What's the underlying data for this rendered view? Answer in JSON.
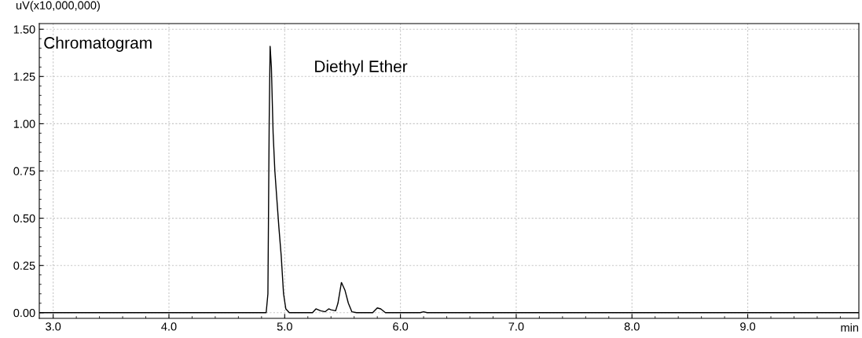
{
  "chart_data": {
    "type": "line",
    "xlabel": "min",
    "ylabel": "uV(x10,000,000)",
    "annotations": [
      "Chromatogram",
      "Diethyl Ether"
    ],
    "x": [
      2.88,
      4.0,
      4.84,
      4.855,
      4.866,
      4.874,
      4.885,
      4.9,
      4.915,
      4.93,
      4.95,
      4.97,
      4.99,
      5.01,
      5.04,
      5.1,
      5.24,
      5.27,
      5.31,
      5.35,
      5.38,
      5.4,
      5.44,
      5.46,
      5.49,
      5.52,
      5.55,
      5.58,
      5.62,
      5.76,
      5.8,
      5.83,
      5.87,
      6.17,
      6.2,
      6.23,
      7.0,
      8.0,
      9.0,
      9.96
    ],
    "series": [
      {
        "color": "#000000",
        "values": [
          0.0,
          0.0,
          0.0,
          0.1,
          1.0,
          1.41,
          1.3,
          0.95,
          0.75,
          0.62,
          0.45,
          0.3,
          0.1,
          0.02,
          0.0,
          0.0,
          0.0,
          0.02,
          0.01,
          0.005,
          0.02,
          0.015,
          0.01,
          0.05,
          0.16,
          0.12,
          0.05,
          0.005,
          0.0,
          0.0,
          0.025,
          0.02,
          0.0,
          0.0,
          0.005,
          0.0,
          0.0,
          0.0,
          0.0,
          0.0
        ]
      }
    ],
    "xlim": [
      2.88,
      9.96
    ],
    "ylim": [
      -0.03,
      1.53
    ],
    "xticks": [
      {
        "value": 3,
        "label": "3.0"
      },
      {
        "value": 4,
        "label": "4.0"
      },
      {
        "value": 5,
        "label": "5.0"
      },
      {
        "value": 6,
        "label": "6.0"
      },
      {
        "value": 7,
        "label": "7.0"
      },
      {
        "value": 8,
        "label": "8.0"
      },
      {
        "value": 9,
        "label": "9.0"
      }
    ],
    "yticks": [
      {
        "value": 0,
        "label": "0.00"
      },
      {
        "value": 0.25,
        "label": "0.25"
      },
      {
        "value": 0.5,
        "label": "0.50"
      },
      {
        "value": 0.75,
        "label": "0.75"
      },
      {
        "value": 1.0,
        "label": "1.00"
      },
      {
        "value": 1.25,
        "label": "1.25"
      },
      {
        "value": 1.5,
        "label": "1.50"
      }
    ],
    "grid": true,
    "marker": "none",
    "line_style": "solid"
  }
}
